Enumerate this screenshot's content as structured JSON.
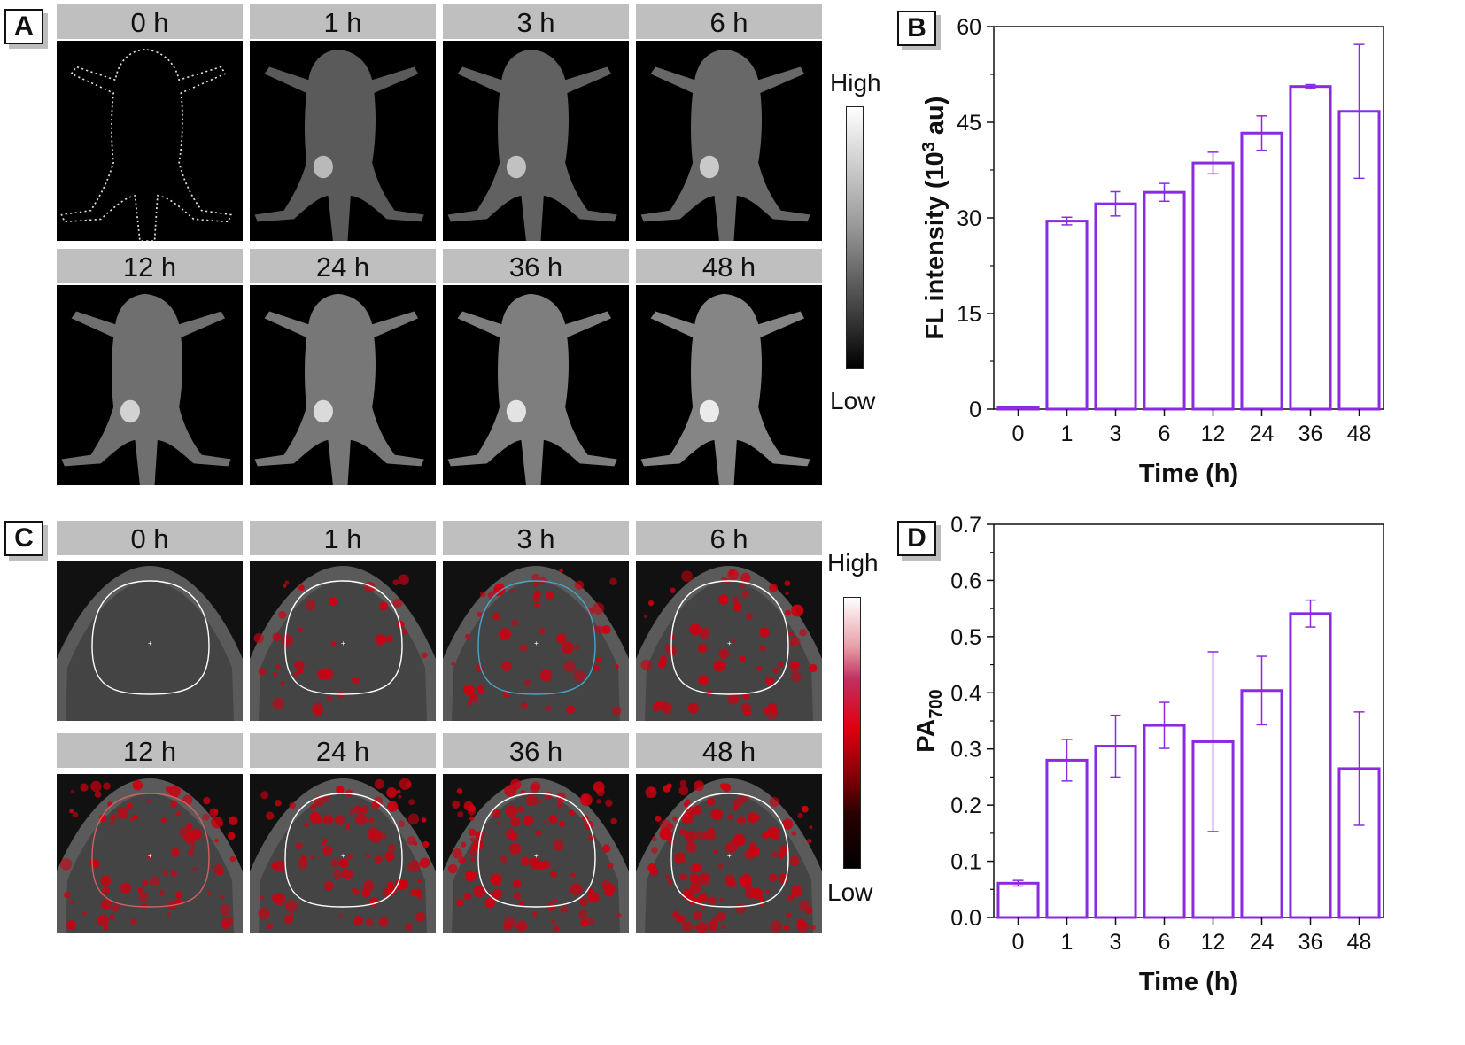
{
  "panels": {
    "a": "A",
    "b": "B",
    "c": "C",
    "d": "D"
  },
  "fl_images": [
    "0 h",
    "1 h",
    "3 h",
    "6 h",
    "12 h",
    "24 h",
    "36 h",
    "48 h"
  ],
  "pa_images": [
    "0 h",
    "1 h",
    "3 h",
    "6 h",
    "12 h",
    "24 h",
    "36 h",
    "48 h"
  ],
  "scale_fl": {
    "high": "High",
    "low": "Low"
  },
  "scale_pa": {
    "high": "High",
    "low": "Low"
  },
  "colors": {
    "bar": "#8a2be2",
    "pa_overlay": "#e00010"
  },
  "chart_data": [
    {
      "type": "bar",
      "panel": "B",
      "categories": [
        "0",
        "1",
        "3",
        "6",
        "12",
        "24",
        "36",
        "48"
      ],
      "values": [
        0.3,
        29.5,
        32.2,
        34.0,
        38.6,
        43.3,
        50.6,
        46.7
      ],
      "errors": [
        0.0,
        0.6,
        1.9,
        1.4,
        1.7,
        2.7,
        0.3,
        10.5
      ],
      "xlabel": "Time (h)",
      "ylabel": "FL intensity (10",
      "ylabel_sup": "3",
      "ylabel_end": " au)",
      "ylim": [
        0,
        60
      ],
      "yticks": [
        0,
        15,
        30,
        45,
        60
      ],
      "ytick_labels": [
        "0",
        "15",
        "30",
        "45",
        "60"
      ]
    },
    {
      "type": "bar",
      "panel": "D",
      "categories": [
        "0",
        "1",
        "3",
        "6",
        "12",
        "24",
        "36",
        "48"
      ],
      "values": [
        0.061,
        0.28,
        0.305,
        0.342,
        0.313,
        0.404,
        0.541,
        0.265
      ],
      "errors": [
        0.005,
        0.037,
        0.055,
        0.041,
        0.16,
        0.061,
        0.024,
        0.101
      ],
      "xlabel": "Time (h)",
      "ylabel": "PA",
      "ylabel_sub": "700",
      "ylim": [
        0,
        0.7
      ],
      "yticks": [
        0,
        0.1,
        0.2,
        0.3,
        0.4,
        0.5,
        0.6,
        0.7
      ],
      "ytick_labels": [
        "0.0",
        "0.1",
        "0.2",
        "0.3",
        "0.4",
        "0.5",
        "0.6",
        "0.7"
      ]
    }
  ]
}
